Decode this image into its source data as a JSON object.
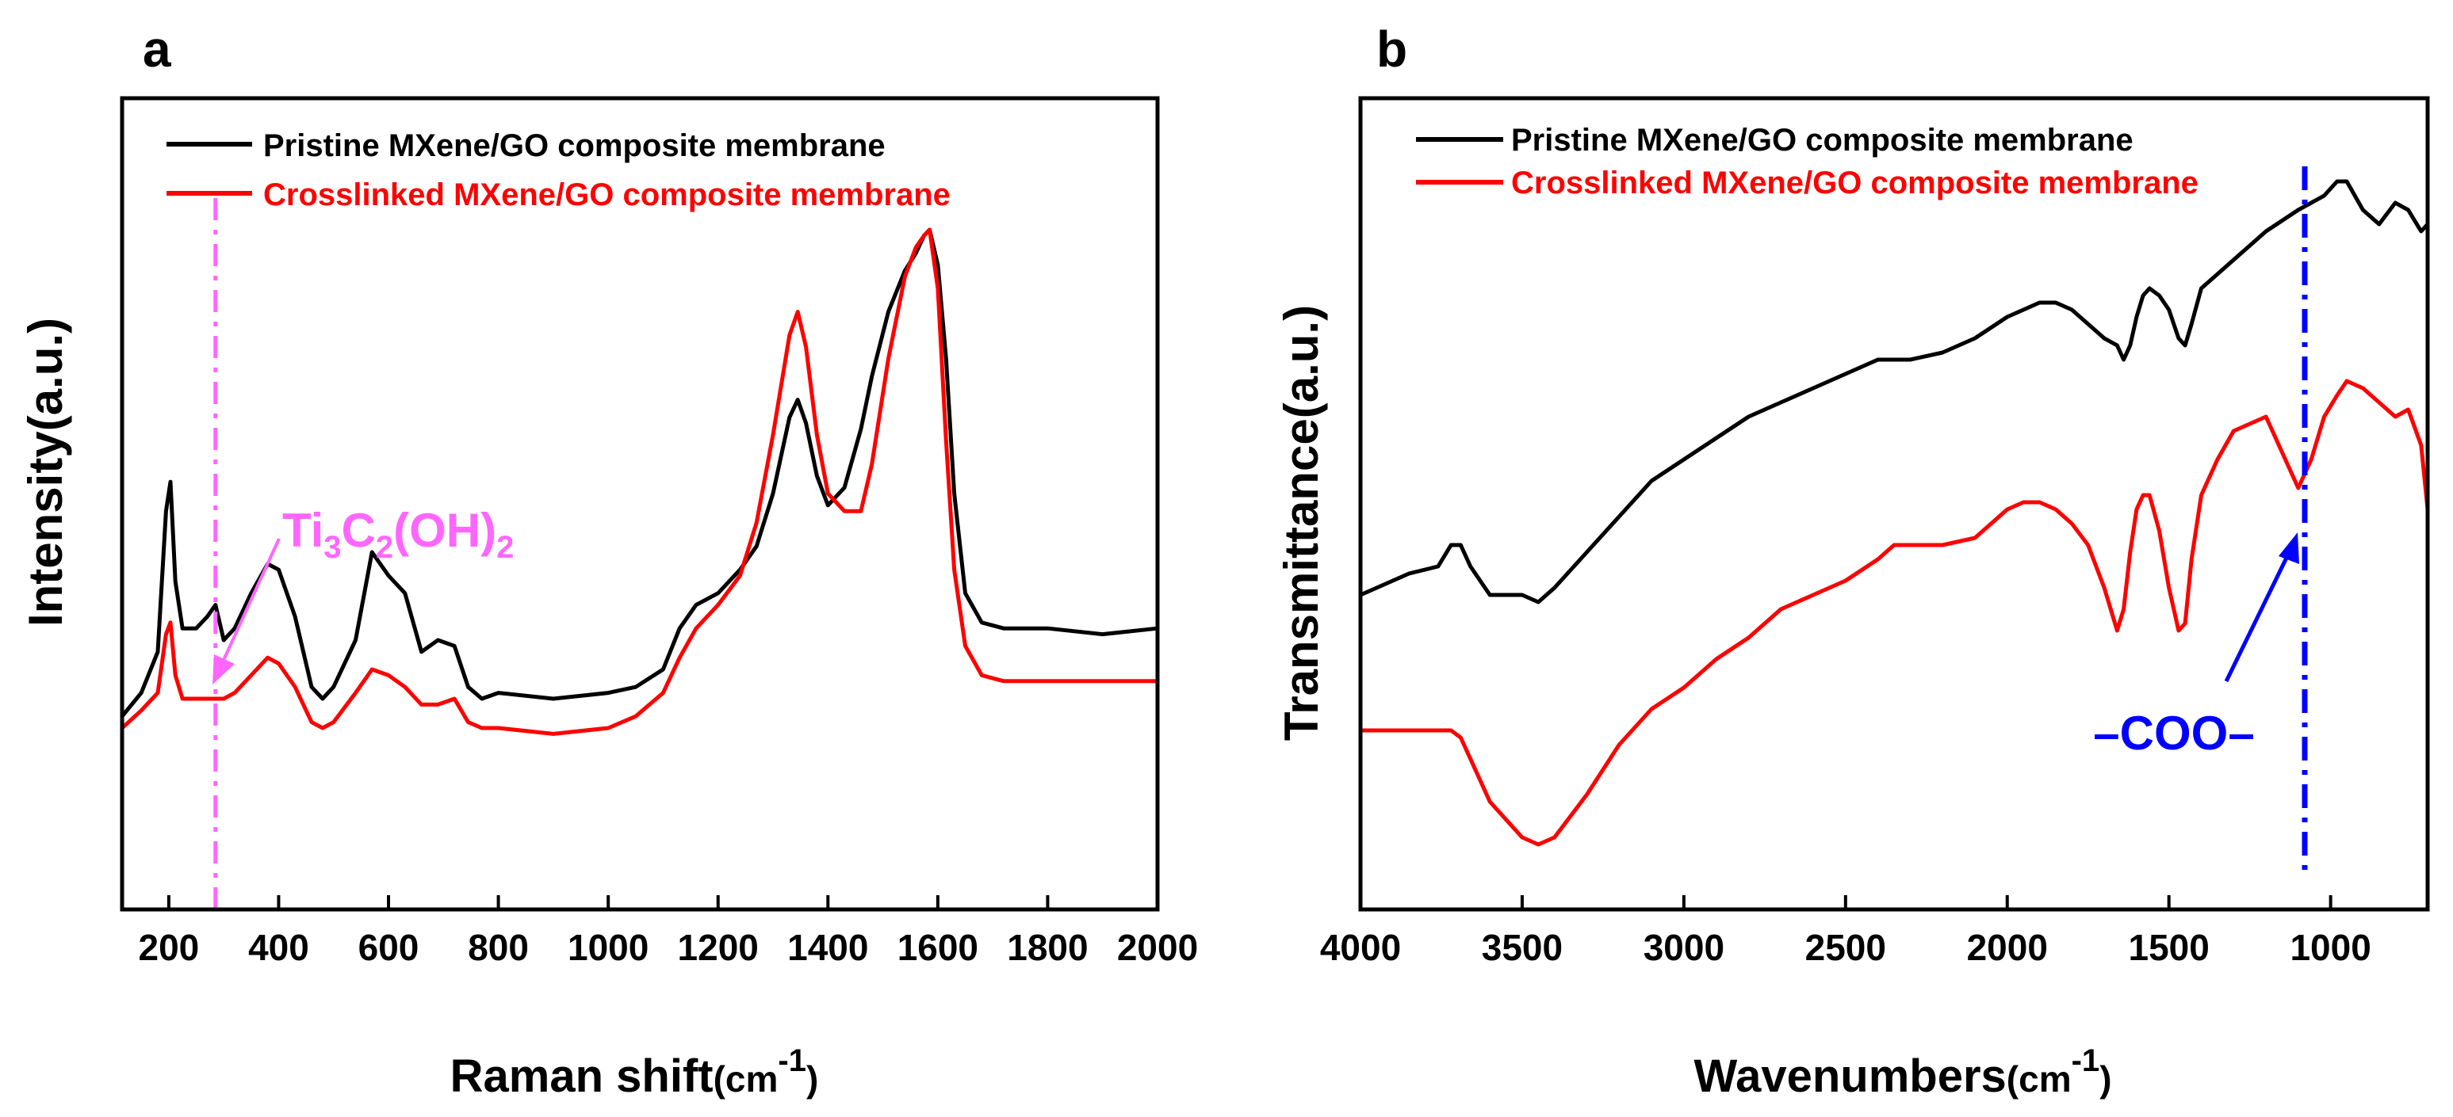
{
  "colors": {
    "pristine": "#000000",
    "crosslinked": "#ff0000",
    "ti_marker": "#ff66ff",
    "coo_marker": "#0000ff"
  },
  "chart_data": [
    {
      "type": "line",
      "panel": "a",
      "xlabel": "Raman shift",
      "xunit": "(cm",
      "xunit_sup": "-1",
      "xunit_close": ")",
      "ylabel": "Intensity(a.u.)",
      "xlim": [
        115,
        2000
      ],
      "ylim": [
        0,
        1
      ],
      "xticks": [
        200,
        400,
        600,
        800,
        1000,
        1200,
        1400,
        1600,
        1800,
        2000
      ],
      "legend_position": "top-left",
      "series": [
        {
          "name": "Pristine MXene/GO composite membrane",
          "color": "#000000",
          "x": [
            115,
            150,
            180,
            195,
            203,
            212,
            225,
            250,
            270,
            285,
            300,
            320,
            350,
            380,
            400,
            430,
            460,
            480,
            500,
            540,
            570,
            600,
            630,
            660,
            690,
            720,
            745,
            770,
            800,
            900,
            1000,
            1050,
            1100,
            1130,
            1160,
            1200,
            1240,
            1270,
            1300,
            1330,
            1345,
            1360,
            1380,
            1400,
            1430,
            1460,
            1480,
            1510,
            1540,
            1560,
            1575,
            1585,
            1600,
            1615,
            1630,
            1650,
            1680,
            1720,
            1800,
            1900,
            2000
          ],
          "y": [
            0.17,
            0.21,
            0.28,
            0.52,
            0.57,
            0.4,
            0.32,
            0.32,
            0.34,
            0.36,
            0.3,
            0.32,
            0.38,
            0.43,
            0.42,
            0.34,
            0.22,
            0.2,
            0.22,
            0.3,
            0.45,
            0.41,
            0.38,
            0.28,
            0.3,
            0.29,
            0.22,
            0.2,
            0.21,
            0.2,
            0.21,
            0.22,
            0.25,
            0.32,
            0.36,
            0.38,
            0.42,
            0.46,
            0.55,
            0.68,
            0.71,
            0.67,
            0.58,
            0.53,
            0.56,
            0.66,
            0.75,
            0.86,
            0.93,
            0.96,
            0.99,
            1.0,
            0.94,
            0.78,
            0.55,
            0.38,
            0.33,
            0.32,
            0.32,
            0.31,
            0.32
          ]
        },
        {
          "name": "Crosslinked MXene/GO composite membrane",
          "color": "#ff0000",
          "x": [
            115,
            150,
            180,
            195,
            203,
            212,
            225,
            250,
            270,
            285,
            300,
            320,
            350,
            380,
            400,
            430,
            460,
            480,
            500,
            540,
            570,
            600,
            630,
            660,
            690,
            720,
            745,
            770,
            800,
            900,
            1000,
            1050,
            1100,
            1130,
            1160,
            1200,
            1240,
            1270,
            1300,
            1330,
            1345,
            1360,
            1380,
            1400,
            1430,
            1460,
            1480,
            1510,
            1540,
            1560,
            1575,
            1585,
            1600,
            1615,
            1630,
            1650,
            1680,
            1720,
            1800,
            1900,
            2000
          ],
          "y": [
            0.15,
            0.18,
            0.21,
            0.31,
            0.33,
            0.24,
            0.2,
            0.2,
            0.2,
            0.2,
            0.2,
            0.21,
            0.24,
            0.27,
            0.26,
            0.22,
            0.16,
            0.15,
            0.16,
            0.21,
            0.25,
            0.24,
            0.22,
            0.19,
            0.19,
            0.2,
            0.16,
            0.15,
            0.15,
            0.14,
            0.15,
            0.17,
            0.21,
            0.27,
            0.32,
            0.36,
            0.41,
            0.5,
            0.65,
            0.82,
            0.86,
            0.8,
            0.65,
            0.55,
            0.52,
            0.52,
            0.6,
            0.78,
            0.92,
            0.97,
            0.99,
            1.0,
            0.9,
            0.64,
            0.42,
            0.29,
            0.24,
            0.23,
            0.23,
            0.23,
            0.23
          ]
        }
      ],
      "annotations": [
        {
          "text_main": "Ti",
          "sub1": "3",
          "text_mid": "C",
          "sub2": "2",
          "text_tail": "(OH)",
          "sub3": "2",
          "marker_x": 285
        }
      ]
    },
    {
      "type": "line",
      "panel": "b",
      "xlabel": "Wavenumbers",
      "xunit": "(cm",
      "xunit_sup": "-1",
      "xunit_close": ")",
      "ylabel": "Transmittance(a.u.)",
      "xlim": [
        4000,
        700
      ],
      "ylim": [
        0,
        1
      ],
      "xticks": [
        4000,
        3500,
        3000,
        2500,
        2000,
        1500,
        1000
      ],
      "legend_position": "top-left",
      "series": [
        {
          "name": "Pristine MXene/GO composite membrane",
          "color": "#000000",
          "x": [
            4000,
            3850,
            3760,
            3720,
            3690,
            3660,
            3600,
            3500,
            3450,
            3400,
            3300,
            3200,
            3100,
            3000,
            2900,
            2800,
            2700,
            2600,
            2500,
            2400,
            2350,
            2300,
            2200,
            2100,
            2000,
            1950,
            1900,
            1850,
            1800,
            1750,
            1700,
            1660,
            1640,
            1620,
            1600,
            1580,
            1560,
            1530,
            1500,
            1470,
            1450,
            1430,
            1400,
            1350,
            1300,
            1200,
            1100,
            1060,
            1020,
            980,
            950,
            900,
            850,
            800,
            760,
            720,
            700
          ],
          "y": [
            0.41,
            0.44,
            0.45,
            0.48,
            0.48,
            0.45,
            0.41,
            0.41,
            0.4,
            0.42,
            0.47,
            0.52,
            0.57,
            0.6,
            0.63,
            0.66,
            0.68,
            0.7,
            0.72,
            0.74,
            0.74,
            0.74,
            0.75,
            0.77,
            0.8,
            0.81,
            0.82,
            0.82,
            0.81,
            0.79,
            0.77,
            0.76,
            0.74,
            0.76,
            0.8,
            0.83,
            0.84,
            0.83,
            0.81,
            0.77,
            0.76,
            0.79,
            0.84,
            0.86,
            0.88,
            0.92,
            0.95,
            0.96,
            0.97,
            0.99,
            0.99,
            0.95,
            0.93,
            0.96,
            0.95,
            0.92,
            0.93
          ]
        },
        {
          "name": "Crosslinked MXene/GO composite membrane",
          "color": "#ff0000",
          "x": [
            4000,
            3850,
            3760,
            3720,
            3690,
            3660,
            3600,
            3500,
            3450,
            3400,
            3300,
            3200,
            3100,
            3000,
            2900,
            2800,
            2700,
            2600,
            2500,
            2400,
            2350,
            2300,
            2200,
            2100,
            2000,
            1950,
            1900,
            1850,
            1800,
            1750,
            1700,
            1660,
            1640,
            1620,
            1600,
            1580,
            1560,
            1530,
            1500,
            1470,
            1450,
            1430,
            1400,
            1350,
            1300,
            1200,
            1100,
            1060,
            1020,
            980,
            950,
            900,
            850,
            800,
            760,
            720,
            700
          ],
          "y": [
            0.22,
            0.22,
            0.22,
            0.22,
            0.21,
            0.18,
            0.12,
            0.07,
            0.06,
            0.07,
            0.13,
            0.2,
            0.25,
            0.28,
            0.32,
            0.35,
            0.39,
            0.41,
            0.43,
            0.46,
            0.48,
            0.48,
            0.48,
            0.49,
            0.53,
            0.54,
            0.54,
            0.53,
            0.51,
            0.48,
            0.42,
            0.36,
            0.39,
            0.47,
            0.53,
            0.55,
            0.55,
            0.5,
            0.42,
            0.36,
            0.37,
            0.46,
            0.55,
            0.6,
            0.64,
            0.66,
            0.56,
            0.6,
            0.66,
            0.69,
            0.71,
            0.7,
            0.68,
            0.66,
            0.67,
            0.62,
            0.53
          ]
        }
      ],
      "annotations": [
        {
          "text": "COO",
          "prefix": "–",
          "suffix": "–",
          "marker_x": 1080
        }
      ]
    }
  ]
}
